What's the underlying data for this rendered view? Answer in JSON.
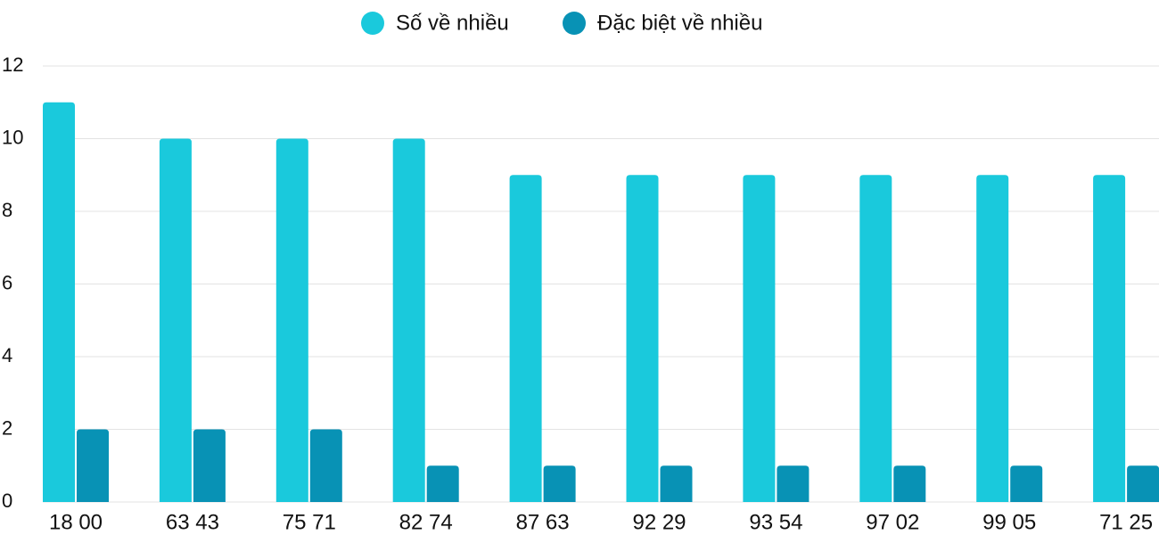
{
  "chart_data": {
    "type": "bar",
    "categories": [
      "18 00",
      "63 43",
      "75 71",
      "82 74",
      "87 63",
      "92 29",
      "93 54",
      "97 02",
      "99 05",
      "71 25"
    ],
    "series": [
      {
        "name": "Số về nhiều",
        "color": "#1ac9dc",
        "values": [
          11,
          10,
          10,
          10,
          9,
          9,
          9,
          9,
          9,
          9
        ]
      },
      {
        "name": "Đặc biệt về nhiều",
        "color": "#0892b5",
        "values": [
          2,
          2,
          2,
          1,
          1,
          1,
          1,
          1,
          1,
          1
        ]
      }
    ],
    "ylim": [
      0,
      12
    ],
    "yticks": [
      0,
      2,
      4,
      6,
      8,
      10,
      12
    ],
    "grid": true,
    "legend": "top"
  }
}
